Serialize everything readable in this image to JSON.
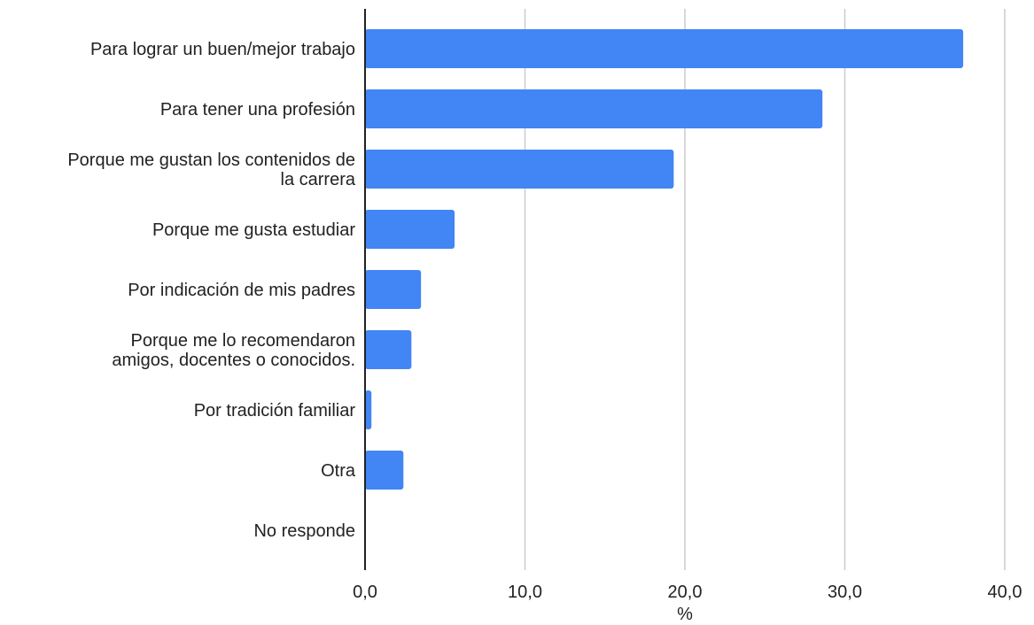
{
  "chart_data": {
    "type": "bar",
    "orientation": "horizontal",
    "categories": [
      [
        "Para lograr un buen/mejor trabajo"
      ],
      [
        "Para tener una profesión"
      ],
      [
        "Porque me gustan los contenidos de",
        "la carrera"
      ],
      [
        "Porque me gusta estudiar"
      ],
      [
        "Por indicación de mis padres"
      ],
      [
        "Porque me lo  recomendaron",
        "amigos, docentes o conocidos."
      ],
      [
        "Por tradición familiar"
      ],
      [
        "Otra"
      ],
      [
        "No responde"
      ]
    ],
    "values": [
      37.4,
      28.6,
      19.3,
      5.6,
      3.5,
      2.9,
      0.4,
      2.4,
      0.0
    ],
    "xlabel": "%",
    "xlim": [
      0,
      40
    ],
    "xticks": [
      0,
      10,
      20,
      30,
      40
    ],
    "xtick_labels": [
      "0,0",
      "10,0",
      "20,0",
      "30,0",
      "40,0"
    ],
    "grid": "vertical",
    "bar_color": "#4285f4",
    "grid_color": "#cccccc",
    "axis_color": "#222222"
  }
}
